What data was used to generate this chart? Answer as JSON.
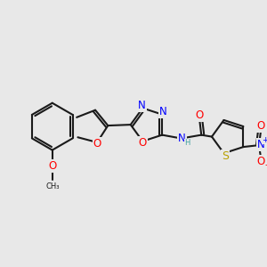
{
  "bg_color": "#e8e8e8",
  "bond_color": "#1a1a1a",
  "atom_colors": {
    "O": "#ff0000",
    "N": "#0000ff",
    "S": "#b8a000",
    "H": "#40a0a0",
    "C": "#1a1a1a",
    "plus": "#0000ff",
    "minus": "#ff0000"
  },
  "bond_lw": 1.5,
  "font_size_atom": 8.5,
  "font_size_small": 6.5
}
